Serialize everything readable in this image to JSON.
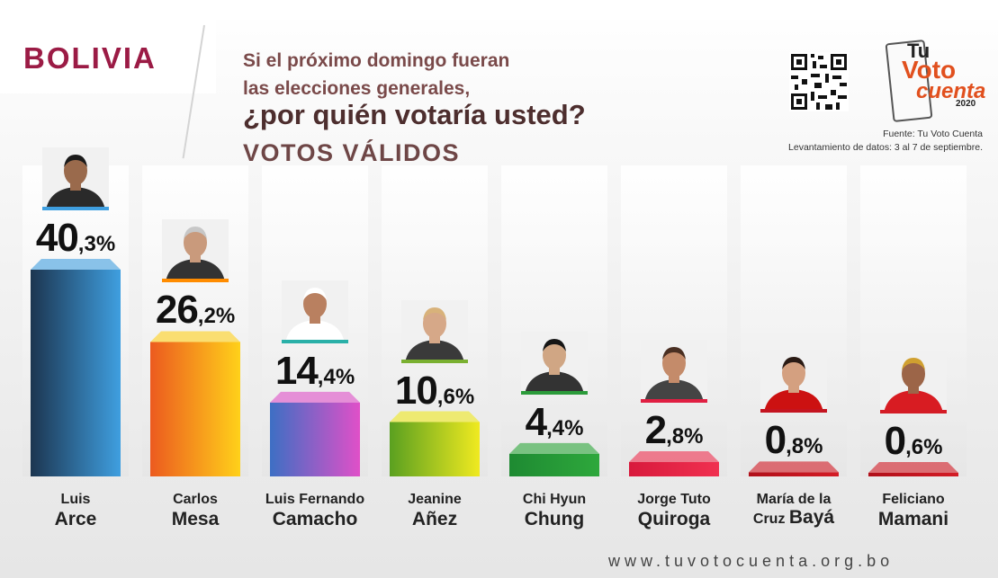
{
  "header": {
    "country": "BOLIVIA",
    "question_line1": "Si el próximo domingo fueran",
    "question_line2": "las elecciones generales,",
    "question_main": "¿por quién votaría usted?",
    "subtitle": "VOTOS VÁLIDOS"
  },
  "logo": {
    "tu": "Tu",
    "voto": "Voto",
    "cuenta": "cuenta",
    "year": "2020"
  },
  "source": {
    "line1": "Fuente: Tu Voto Cuenta",
    "line2": "Levantamiento de datos: 3 al 7 de septiembre."
  },
  "footer": {
    "url": "www.tuvotocuenta.org.bo"
  },
  "chart_data": {
    "type": "bar",
    "title": "¿por quién votaría usted?",
    "subtitle": "VOTOS VÁLIDOS",
    "unit": "%",
    "ylim": [
      0,
      40.3
    ],
    "grid": false,
    "categories": [
      "Luis Arce",
      "Carlos Mesa",
      "Luis Fernando Camacho",
      "Jeanine Añez",
      "Chi Hyun Chung",
      "Jorge Tuto Quiroga",
      "María de la Cruz Bayá",
      "Feliciano Mamani"
    ],
    "values": [
      40.3,
      26.2,
      14.4,
      10.6,
      4.4,
      2.8,
      0.8,
      0.6
    ],
    "value_labels": [
      {
        "int": "40",
        "dec": ",3%"
      },
      {
        "int": "26",
        "dec": ",2%"
      },
      {
        "int": "14",
        "dec": ",4%"
      },
      {
        "int": "10",
        "dec": ",6%"
      },
      {
        "int": "4",
        "dec": ",4%"
      },
      {
        "int": "2",
        "dec": ",8%"
      },
      {
        "int": "0",
        "dec": ",8%"
      },
      {
        "int": "0",
        "dec": ",6%"
      }
    ],
    "candidates": [
      {
        "first": "Luis",
        "last": "Arce",
        "colors": [
          "#1c3550",
          "#3f9fe0"
        ],
        "accent": "#3f9fe0",
        "skin": "#9a6a4c",
        "hair": "#1a1a1a",
        "shirt": "#2a2a2a"
      },
      {
        "first": "Carlos",
        "last": "Mesa",
        "colors": [
          "#ec5a1f",
          "#ffd11a"
        ],
        "accent": "#ff8c00",
        "skin": "#c99a7c",
        "hair": "#c7c7c7",
        "shirt": "#333333"
      },
      {
        "first": "Luis Fernando",
        "last": "Camacho",
        "colors": [
          "#3d6fc4",
          "#e050c8"
        ],
        "accent": "#2ab0a8",
        "skin": "#b98060",
        "hair": "#ffffff",
        "shirt": "#ffffff"
      },
      {
        "first": "Jeanine",
        "last": "Añez",
        "colors": [
          "#5aa020",
          "#f0ea20"
        ],
        "accent": "#7ab030",
        "skin": "#d6a888",
        "hair": "#d8b27a",
        "shirt": "#3a3a3a"
      },
      {
        "first": "Chi Hyun",
        "last": "Chung",
        "colors": [
          "#1e8a32",
          "#2ea83c"
        ],
        "accent": "#2b9b3a",
        "skin": "#d0a684",
        "hair": "#151515",
        "shirt": "#333333"
      },
      {
        "first": "Jorge Tuto",
        "last": "Quiroga",
        "colors": [
          "#d81a3c",
          "#f03050"
        ],
        "accent": "#e01f42",
        "skin": "#c48b6a",
        "hair": "#4a2f22",
        "shirt": "#444444"
      },
      {
        "first": "María de la",
        "last_small": "Cruz ",
        "last": "Bayá",
        "colors": [
          "#b0101a",
          "#d41c26"
        ],
        "accent": "#c41420",
        "skin": "#d4a080",
        "hair": "#2a1a14",
        "shirt": "#cc1111"
      },
      {
        "first": "Feliciano",
        "last": "Mamani",
        "colors": [
          "#b0101a",
          "#d41c26"
        ],
        "accent": "#d41c26",
        "skin": "#9c6548",
        "hair": "#d0a030",
        "shirt": "#d81c22"
      }
    ]
  }
}
